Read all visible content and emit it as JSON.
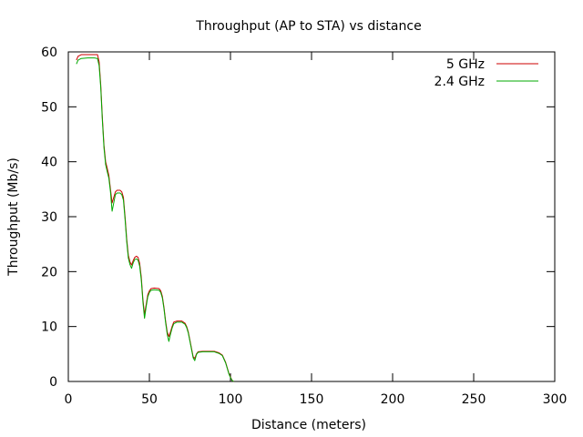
{
  "chart_data": {
    "type": "line",
    "title": "Throughput (AP to STA) vs distance",
    "xlabel": "Distance (meters)",
    "ylabel": "Throughput (Mb/s)",
    "xlim": [
      0,
      300
    ],
    "ylim": [
      0,
      60
    ],
    "xticks": [
      0,
      50,
      100,
      150,
      200,
      250,
      300
    ],
    "yticks": [
      0,
      10,
      20,
      30,
      40,
      50,
      60
    ],
    "grid": false,
    "legend_position": "top-right",
    "series": [
      {
        "name": "5 GHz",
        "color": "#cc0000",
        "points": [
          [
            5,
            58.5
          ],
          [
            6,
            59.2
          ],
          [
            8,
            59.5
          ],
          [
            12,
            59.5
          ],
          [
            16,
            59.5
          ],
          [
            18,
            59.5
          ],
          [
            19,
            58.2
          ],
          [
            20,
            54.0
          ],
          [
            21,
            48.0
          ],
          [
            22,
            43.0
          ],
          [
            23,
            40.0
          ],
          [
            24,
            38.8
          ],
          [
            25,
            37.5
          ],
          [
            26,
            35.0
          ],
          [
            27,
            32.5
          ],
          [
            28,
            33.5
          ],
          [
            29,
            34.5
          ],
          [
            30,
            34.8
          ],
          [
            32,
            34.8
          ],
          [
            33,
            34.5
          ],
          [
            34,
            33.5
          ],
          [
            35,
            30.0
          ],
          [
            36,
            26.0
          ],
          [
            37,
            23.0
          ],
          [
            38,
            21.8
          ],
          [
            39,
            21.2
          ],
          [
            40,
            22.0
          ],
          [
            41,
            22.6
          ],
          [
            42,
            22.8
          ],
          [
            43,
            22.6
          ],
          [
            44,
            21.5
          ],
          [
            45,
            19.0
          ],
          [
            46,
            15.0
          ],
          [
            47,
            12.2
          ],
          [
            48,
            14.0
          ],
          [
            49,
            15.8
          ],
          [
            50,
            16.5
          ],
          [
            51,
            16.9
          ],
          [
            53,
            17.0
          ],
          [
            56,
            16.9
          ],
          [
            57,
            16.5
          ],
          [
            58,
            15.5
          ],
          [
            59,
            13.5
          ],
          [
            60,
            11.0
          ],
          [
            61,
            9.0
          ],
          [
            62,
            8.2
          ],
          [
            63,
            9.0
          ],
          [
            64,
            10.0
          ],
          [
            65,
            10.8
          ],
          [
            67,
            11.0
          ],
          [
            70,
            11.0
          ],
          [
            72,
            10.6
          ],
          [
            73,
            10.0
          ],
          [
            74,
            9.0
          ],
          [
            75,
            7.5
          ],
          [
            76,
            6.0
          ],
          [
            77,
            4.5
          ],
          [
            78,
            4.2
          ],
          [
            79,
            5.0
          ],
          [
            80,
            5.4
          ],
          [
            83,
            5.5
          ],
          [
            90,
            5.5
          ],
          [
            93,
            5.2
          ],
          [
            95,
            4.8
          ],
          [
            97,
            3.5
          ],
          [
            98,
            2.5
          ],
          [
            99,
            1.5
          ],
          [
            100,
            0.8
          ],
          [
            101,
            0.2
          ],
          [
            102,
            0.0
          ]
        ]
      },
      {
        "name": "2.4 GHz",
        "color": "#00aa00",
        "points": [
          [
            5,
            57.8
          ],
          [
            6,
            58.5
          ],
          [
            8,
            58.8
          ],
          [
            12,
            58.9
          ],
          [
            16,
            58.9
          ],
          [
            18,
            58.8
          ],
          [
            19,
            57.5
          ],
          [
            20,
            53.5
          ],
          [
            21,
            47.5
          ],
          [
            22,
            42.5
          ],
          [
            23,
            39.5
          ],
          [
            24,
            38.2
          ],
          [
            25,
            37.0
          ],
          [
            26,
            34.5
          ],
          [
            27,
            31.0
          ],
          [
            28,
            32.5
          ],
          [
            29,
            34.0
          ],
          [
            30,
            34.3
          ],
          [
            32,
            34.3
          ],
          [
            33,
            34.0
          ],
          [
            34,
            33.0
          ],
          [
            35,
            29.5
          ],
          [
            36,
            25.5
          ],
          [
            37,
            22.5
          ],
          [
            38,
            21.3
          ],
          [
            39,
            20.6
          ],
          [
            40,
            21.6
          ],
          [
            41,
            22.2
          ],
          [
            42,
            22.3
          ],
          [
            43,
            22.1
          ],
          [
            44,
            21.0
          ],
          [
            45,
            18.5
          ],
          [
            46,
            14.5
          ],
          [
            47,
            11.5
          ],
          [
            48,
            13.6
          ],
          [
            49,
            15.4
          ],
          [
            50,
            16.2
          ],
          [
            51,
            16.6
          ],
          [
            53,
            16.7
          ],
          [
            56,
            16.6
          ],
          [
            57,
            16.2
          ],
          [
            58,
            15.2
          ],
          [
            59,
            13.2
          ],
          [
            60,
            10.7
          ],
          [
            61,
            8.6
          ],
          [
            62,
            7.3
          ],
          [
            63,
            8.6
          ],
          [
            64,
            9.7
          ],
          [
            65,
            10.5
          ],
          [
            67,
            10.8
          ],
          [
            70,
            10.8
          ],
          [
            72,
            10.4
          ],
          [
            73,
            9.8
          ],
          [
            74,
            8.8
          ],
          [
            75,
            7.3
          ],
          [
            76,
            5.8
          ],
          [
            77,
            4.3
          ],
          [
            78,
            3.8
          ],
          [
            79,
            4.9
          ],
          [
            80,
            5.3
          ],
          [
            83,
            5.4
          ],
          [
            90,
            5.4
          ],
          [
            93,
            5.1
          ],
          [
            95,
            4.7
          ],
          [
            97,
            3.4
          ],
          [
            98,
            2.4
          ],
          [
            99,
            1.4
          ],
          [
            100,
            0.7
          ],
          [
            101,
            0.2
          ],
          [
            102,
            0.0
          ]
        ]
      }
    ]
  }
}
